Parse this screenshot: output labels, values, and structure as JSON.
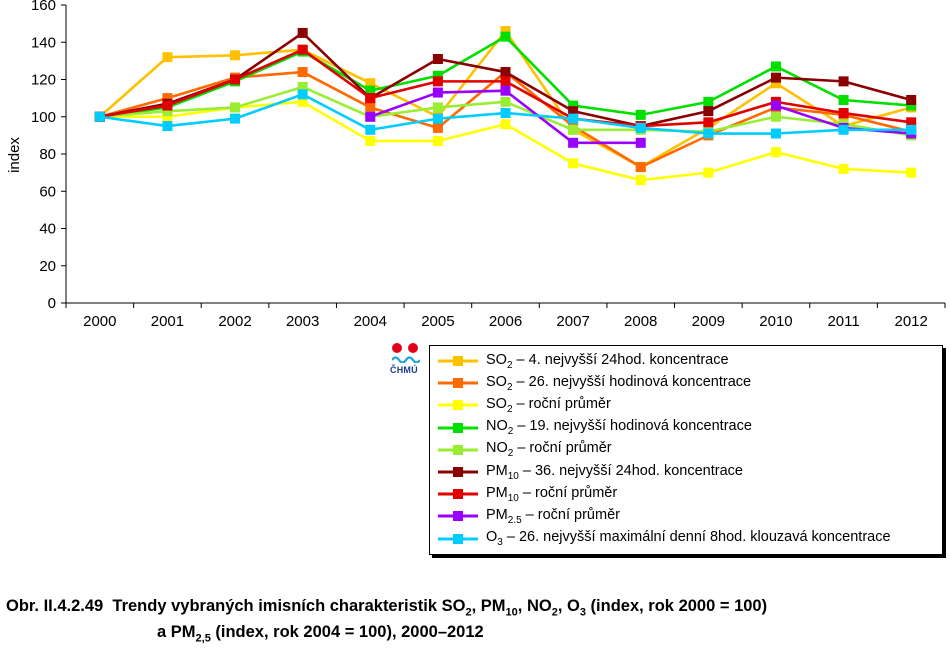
{
  "chart_data": {
    "type": "line",
    "ylabel": "index",
    "ylim": [
      0,
      160
    ],
    "yticks": [
      "0",
      "20",
      "40",
      "60",
      "80",
      "100",
      "120",
      "140",
      "160"
    ],
    "categories": [
      "2000",
      "2001",
      "2002",
      "2003",
      "2004",
      "2005",
      "2006",
      "2007",
      "2008",
      "2009",
      "2010",
      "2011",
      "2012"
    ],
    "grid": false,
    "series": [
      {
        "name": "SO2 – 4. nejvyšší 24hod. koncentrace",
        "color": "#ffc000",
        "values": [
          100,
          132,
          133,
          136,
          118,
          100,
          146,
          93,
          73,
          94,
          118,
          95,
          105
        ]
      },
      {
        "name": "SO2 – 26. nejvyšší hodinová koncentrace",
        "color": "#ff6a00",
        "values": [
          100,
          110,
          121,
          124,
          105,
          94,
          124,
          95,
          73,
          90,
          105,
          101,
          92
        ]
      },
      {
        "name": "SO2 – roční průměr",
        "color": "#ffff00",
        "values": [
          100,
          100,
          105,
          108,
          87,
          87,
          96,
          75,
          66,
          70,
          81,
          72,
          70
        ]
      },
      {
        "name": "NO2 – 19. nejvyšší hodinová koncentrace",
        "color": "#00e000",
        "values": [
          100,
          105,
          119,
          135,
          114,
          122,
          143,
          106,
          101,
          108,
          127,
          109,
          106
        ]
      },
      {
        "name": "NO2 – roční průměr",
        "color": "#99ee33",
        "values": [
          100,
          103,
          105,
          116,
          100,
          105,
          108,
          93,
          93,
          92,
          100,
          96,
          90
        ]
      },
      {
        "name": "PM10 – 36. nejvyšší 24hod. koncentrace",
        "color": "#8b0000",
        "values": [
          100,
          107,
          120,
          145,
          110,
          131,
          124,
          103,
          95,
          103,
          121,
          119,
          109
        ]
      },
      {
        "name": "PM10 – roční průměr",
        "color": "#e00000",
        "values": [
          100,
          106,
          120,
          136,
          110,
          119,
          119,
          99,
          95,
          97,
          108,
          102,
          97
        ]
      },
      {
        "name": "PM2.5 – roční průměr",
        "color": "#9900ff",
        "values": [
          null,
          null,
          null,
          null,
          100,
          113,
          114,
          86,
          86,
          null,
          106,
          94,
          91
        ]
      },
      {
        "name": "O3 – 26. nejvyšší maximální denní 8hod. klouzavá koncentrace",
        "color": "#00ccff",
        "values": [
          100,
          95,
          99,
          112,
          93,
          99,
          102,
          99,
          94,
          91,
          91,
          93,
          93
        ]
      }
    ]
  },
  "legend": [
    {
      "pre": "SO",
      "sub": "2",
      "post": "  – 4. nejvyšší 24hod. koncentrace"
    },
    {
      "pre": "SO",
      "sub": "2",
      "post": "  – 26. nejvyšší hodinová koncentrace"
    },
    {
      "pre": "SO",
      "sub": "2",
      "post": "  – roční průměr"
    },
    {
      "pre": "NO",
      "sub": "2",
      "post": " – 19. nejvyšší hodinová koncentrace"
    },
    {
      "pre": "NO",
      "sub": "2",
      "post": " – roční průměr"
    },
    {
      "pre": "PM",
      "sub": "10",
      "post": " – 36. nejvyšší 24hod. koncentrace"
    },
    {
      "pre": "PM",
      "sub": "10",
      "post": " – roční průměr"
    },
    {
      "pre": "PM",
      "sub": "2.5",
      "post": " – roční průměr"
    },
    {
      "pre": "O",
      "sub": "3",
      "post": " – 26. nejvyšší maximální denní 8hod. klouzavá koncentrace"
    }
  ],
  "logo_text": "ČHMÚ",
  "caption": {
    "number": "Obr. II.4.2.49",
    "l1_a": "Trendy vybraných imisních charakteristik SO",
    "l1_s1": "2",
    "l1_b": ", PM",
    "l1_s2": "10",
    "l1_c": ", NO",
    "l1_s3": "2",
    "l1_d": ", O",
    "l1_s4": "3",
    "l1_e": " (index, rok 2000 = 100)",
    "l2_a": "a PM",
    "l2_s1": "2,5",
    "l2_b": " (index, rok 2004 = 100), 2000–2012"
  }
}
